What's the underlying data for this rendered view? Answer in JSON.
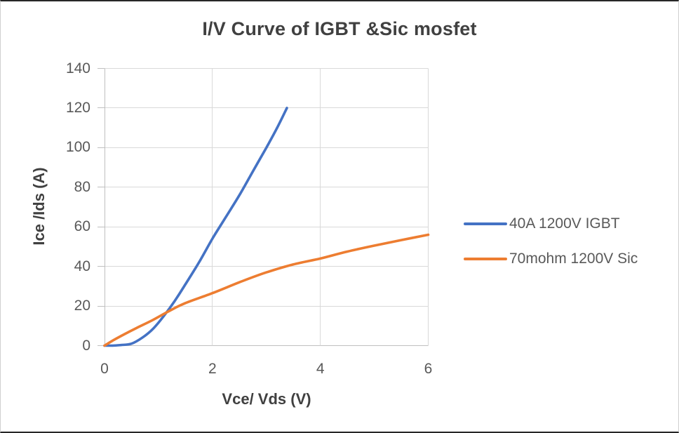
{
  "chart_data": {
    "type": "line",
    "title": "I/V Curve of IGBT &Sic mosfet",
    "xlabel": "Vce/ Vds (V)",
    "ylabel": "Ice /Ids (A)",
    "xlim": [
      0,
      6
    ],
    "ylim": [
      0,
      140
    ],
    "x_ticks": [
      0,
      2,
      4,
      6
    ],
    "y_ticks": [
      0,
      20,
      40,
      60,
      80,
      100,
      120,
      140
    ],
    "grid": true,
    "legend_position": "right",
    "background_color": "#FFFFFF",
    "gridline_color": "#D9D9D9",
    "axis_color": "#BFBFBF",
    "tick_text_color": "#595959",
    "title_color": "#404040",
    "series": [
      {
        "name": "40A 1200V IGBT",
        "color": "#4472C4",
        "points": [
          [
            0,
            0
          ],
          [
            0.15,
            0
          ],
          [
            0.3,
            0.3
          ],
          [
            0.5,
            1
          ],
          [
            0.7,
            4
          ],
          [
            0.9,
            8.5
          ],
          [
            1.1,
            15
          ],
          [
            1.3,
            22.5
          ],
          [
            1.5,
            31
          ],
          [
            1.75,
            42
          ],
          [
            2,
            54
          ],
          [
            2.25,
            65
          ],
          [
            2.5,
            76
          ],
          [
            2.75,
            88
          ],
          [
            3,
            100
          ],
          [
            3.2,
            110
          ],
          [
            3.38,
            120
          ]
        ]
      },
      {
        "name": "70mohm 1200V Sic",
        "color": "#ED7D31",
        "points": [
          [
            0,
            0
          ],
          [
            0.15,
            2.5
          ],
          [
            0.35,
            5.5
          ],
          [
            0.6,
            9
          ],
          [
            0.9,
            13
          ],
          [
            1.2,
            17.5
          ],
          [
            1.5,
            21.5
          ],
          [
            2,
            26.5
          ],
          [
            2.5,
            32
          ],
          [
            3,
            37
          ],
          [
            3.5,
            41
          ],
          [
            4,
            44
          ],
          [
            4.5,
            47.5
          ],
          [
            5,
            50.5
          ],
          [
            5.5,
            53.3
          ],
          [
            6,
            56
          ]
        ]
      }
    ]
  }
}
